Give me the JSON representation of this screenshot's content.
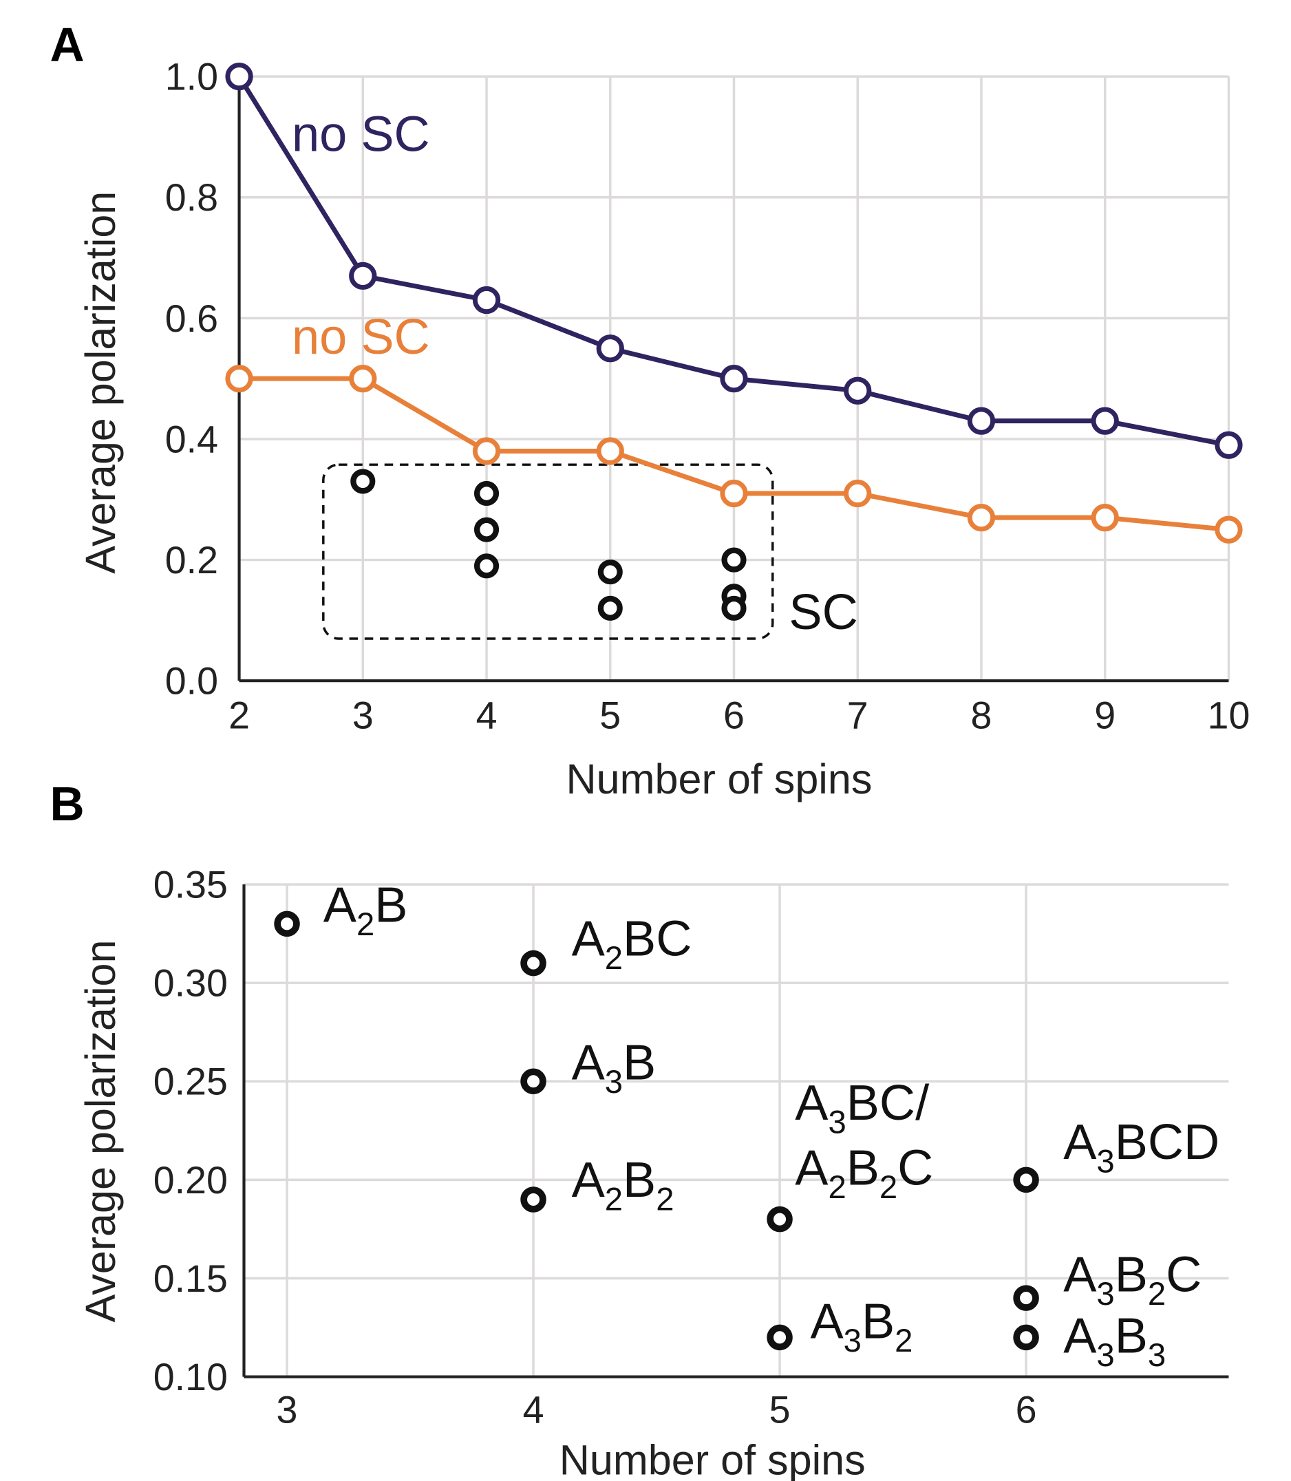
{
  "colors": {
    "no_sc_blue": "#2f2360",
    "no_sc_orange": "#e8803a",
    "sc": "#111111",
    "grid": "#dddada"
  },
  "chart_data": [
    {
      "panel": "A",
      "type": "line",
      "xlabel": "Number of spins",
      "ylabel": "Average polarization",
      "xlim": [
        2,
        10
      ],
      "ylim": [
        0,
        1.0
      ],
      "x_ticks": [
        "2",
        "3",
        "4",
        "5",
        "6",
        "7",
        "8",
        "9",
        "10"
      ],
      "y_ticks": [
        "0.0",
        "0.2",
        "0.4",
        "0.6",
        "0.8",
        "1.0"
      ],
      "grid": true,
      "series": [
        {
          "name": "no SC",
          "color_key": "no_sc_blue",
          "x": [
            2,
            3,
            4,
            5,
            6,
            7,
            8,
            9,
            10
          ],
          "y": [
            1.0,
            0.67,
            0.63,
            0.55,
            0.5,
            0.48,
            0.43,
            0.43,
            0.39
          ]
        },
        {
          "name": "no SC",
          "color_key": "no_sc_orange",
          "x": [
            2,
            3,
            4,
            5,
            6,
            7,
            8,
            9,
            10
          ],
          "y": [
            0.5,
            0.5,
            0.38,
            0.38,
            0.31,
            0.31,
            0.27,
            0.27,
            0.25
          ]
        },
        {
          "name": "SC",
          "color_key": "sc",
          "type": "scatter",
          "x": [
            3,
            4,
            4,
            4,
            5,
            5,
            6,
            6,
            6
          ],
          "y": [
            0.33,
            0.31,
            0.25,
            0.19,
            0.18,
            0.12,
            0.2,
            0.14,
            0.12
          ]
        }
      ]
    },
    {
      "panel": "B",
      "type": "scatter",
      "xlabel": "Number of spins",
      "ylabel": "Average polarization",
      "xlim": [
        2.8,
        6.85
      ],
      "ylim": [
        0.1,
        0.35
      ],
      "x_ticks": [
        "3",
        "4",
        "5",
        "6"
      ],
      "y_ticks": [
        "0.10",
        "0.15",
        "0.20",
        "0.25",
        "0.30",
        "0.35"
      ],
      "grid": true,
      "points": [
        {
          "x": 3,
          "y": 0.33,
          "labels": [
            "A2B"
          ]
        },
        {
          "x": 4,
          "y": 0.31,
          "labels": [
            "A2BC"
          ]
        },
        {
          "x": 4,
          "y": 0.25,
          "labels": [
            "A3B"
          ]
        },
        {
          "x": 4,
          "y": 0.19,
          "labels": [
            "A2B2"
          ]
        },
        {
          "x": 5,
          "y": 0.18,
          "labels": [
            "A3BC/",
            "A2B2C"
          ]
        },
        {
          "x": 5,
          "y": 0.12,
          "labels": [
            "A3B2"
          ]
        },
        {
          "x": 6,
          "y": 0.2,
          "labels": [
            "A3BCD"
          ]
        },
        {
          "x": 6,
          "y": 0.14,
          "labels": [
            "A3B2C"
          ]
        },
        {
          "x": 6,
          "y": 0.12,
          "labels": [
            "A3B3"
          ]
        }
      ],
      "label_note": "digits in labels are rendered as subscripts"
    }
  ]
}
